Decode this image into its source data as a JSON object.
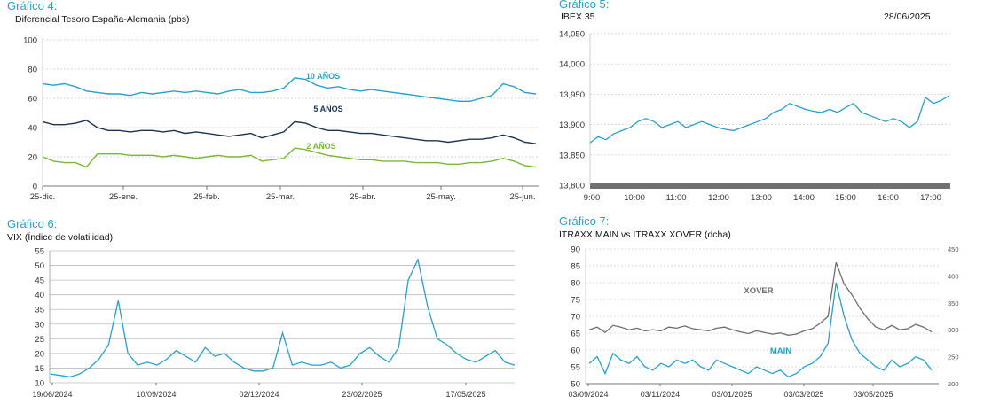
{
  "panels": {
    "g4": {
      "title": "Gráfico 4:",
      "subtitle": "Diferencial Tesoro España-Alemania (pbs)"
    },
    "g5": {
      "title": "Gráfico 5:",
      "subtitle": "IBEX 35",
      "date": "28/06/2025"
    },
    "g6": {
      "title": "Gráfico 6:",
      "subtitle": "VIX (Índice de volatilidad)"
    },
    "g7": {
      "title": "Gráfico 7:",
      "subtitle": "ITRAXX MAIN vs ITRAXX XOVER (dcha)"
    }
  },
  "chart_data": [
    {
      "id": "g4",
      "type": "line",
      "title": "Diferencial Tesoro España-Alemania (pbs)",
      "xlabel": "",
      "ylabel": "",
      "x_ticks": [
        "25-dic.",
        "25-ene.",
        "25-feb.",
        "25-mar.",
        "25-abr.",
        "25-may.",
        "25-jun."
      ],
      "y_ticks": [
        0,
        20,
        40,
        60,
        80,
        100
      ],
      "ylim": [
        0,
        100
      ],
      "grid": true,
      "colors": {
        "10a": "#2aa0c8",
        "5a": "#1c3350",
        "2a": "#7ab63a"
      },
      "series": [
        {
          "name": "10 AÑOS",
          "key": "10a",
          "values": [
            70,
            69,
            70,
            68,
            65,
            64,
            63,
            63,
            62,
            64,
            63,
            64,
            65,
            64,
            65,
            64,
            63,
            65,
            66,
            64,
            64,
            65,
            67,
            74,
            73,
            69,
            67,
            68,
            66,
            65,
            66,
            65,
            64,
            63,
            62,
            61,
            60,
            59,
            58,
            58,
            60,
            62,
            70,
            68,
            64,
            63
          ]
        },
        {
          "name": "5 AÑOS",
          "key": "5a",
          "values": [
            44,
            42,
            42,
            43,
            45,
            40,
            38,
            38,
            37,
            38,
            38,
            37,
            38,
            36,
            37,
            36,
            35,
            34,
            35,
            36,
            33,
            35,
            37,
            44,
            43,
            40,
            38,
            38,
            37,
            36,
            36,
            35,
            34,
            33,
            32,
            31,
            31,
            30,
            31,
            32,
            32,
            33,
            35,
            33,
            30,
            29
          ]
        },
        {
          "name": "2 AÑOS",
          "key": "2a",
          "values": [
            20,
            17,
            16,
            16,
            13,
            22,
            22,
            22,
            21,
            21,
            21,
            20,
            21,
            20,
            19,
            20,
            21,
            20,
            20,
            21,
            17,
            18,
            19,
            26,
            25,
            23,
            21,
            20,
            19,
            18,
            18,
            17,
            17,
            17,
            16,
            16,
            16,
            15,
            15,
            16,
            16,
            17,
            19,
            17,
            14,
            13
          ]
        }
      ],
      "annotations": [
        {
          "text": "10 AÑOS",
          "series": "10a"
        },
        {
          "text": "5 AÑOS",
          "series": "5a"
        },
        {
          "text": "2 AÑOS",
          "series": "2a"
        }
      ]
    },
    {
      "id": "g5",
      "type": "area",
      "title": "IBEX 35",
      "x_ticks": [
        "9:00",
        "10:00",
        "11:00",
        "12:00",
        "13:00",
        "14:00",
        "15:00",
        "16:00",
        "17:00"
      ],
      "y_ticks": [
        "13,800",
        "13,850",
        "13,900",
        "13,950",
        "14,000",
        "14,050"
      ],
      "ylim": [
        13800,
        14050
      ],
      "grid": true,
      "colors": {
        "line": "#2aa0c8",
        "base": "#707070"
      },
      "series": [
        {
          "name": "IBEX 35",
          "values": [
            13870,
            13880,
            13875,
            13885,
            13890,
            13895,
            13905,
            13910,
            13905,
            13895,
            13900,
            13905,
            13895,
            13900,
            13905,
            13900,
            13895,
            13892,
            13890,
            13895,
            13900,
            13905,
            13910,
            13920,
            13925,
            13935,
            13930,
            13925,
            13922,
            13920,
            13925,
            13920,
            13928,
            13935,
            13920,
            13915,
            13910,
            13905,
            13910,
            13905,
            13895,
            13905,
            13945,
            13935,
            13940,
            13948
          ]
        }
      ]
    },
    {
      "id": "g6",
      "type": "line",
      "title": "VIX (Índice de volatilidad)",
      "x_ticks": [
        "19/06/2024",
        "10/09/2024",
        "02/12/2024",
        "23/02/2025",
        "17/05/2025"
      ],
      "y_ticks": [
        10,
        15,
        20,
        25,
        30,
        35,
        40,
        45,
        50,
        55
      ],
      "ylim": [
        10,
        55
      ],
      "grid": true,
      "colors": {
        "line": "#2aa0c8"
      },
      "series": [
        {
          "name": "VIX",
          "values": [
            13,
            12.5,
            12,
            13,
            15,
            18,
            23,
            38,
            20,
            16,
            17,
            16,
            18,
            21,
            19,
            17,
            22,
            19,
            20,
            17,
            15,
            14,
            14,
            15,
            27,
            16,
            17,
            16,
            16,
            17,
            15,
            16,
            20,
            22,
            19,
            17,
            22,
            45,
            52,
            36,
            25,
            23,
            20,
            18,
            17,
            19,
            21,
            17,
            16
          ]
        }
      ]
    },
    {
      "id": "g7",
      "type": "line",
      "title": "ITRAXX MAIN vs ITRAXX XOVER (dcha)",
      "x_ticks": [
        "03/09/2024",
        "03/11/2024",
        "03/01/2025",
        "03/03/2025",
        "03/05/2025"
      ],
      "y_ticks": [
        50,
        55,
        60,
        65,
        70,
        75,
        80,
        85,
        90
      ],
      "y2_ticks": [
        200,
        250,
        300,
        350,
        400,
        450
      ],
      "ylim": [
        50,
        90
      ],
      "y2lim": [
        200,
        450
      ],
      "grid": true,
      "colors": {
        "main": "#2aa0c8",
        "xover": "#6e6e6e"
      },
      "series": [
        {
          "name": "MAIN",
          "axis": "left",
          "values": [
            56,
            58,
            53,
            59,
            57,
            56,
            58,
            55,
            54,
            56,
            55,
            57,
            56,
            57,
            55,
            54,
            57,
            56,
            55,
            54,
            53,
            55,
            54,
            53,
            54,
            52,
            53,
            55,
            56,
            58,
            62,
            80,
            70,
            63,
            59,
            57,
            55,
            54,
            57,
            55,
            56,
            58,
            57,
            54
          ]
        },
        {
          "name": "XOVER",
          "axis": "right",
          "values": [
            300,
            305,
            295,
            308,
            305,
            300,
            303,
            298,
            300,
            298,
            305,
            303,
            307,
            302,
            300,
            298,
            303,
            305,
            300,
            296,
            293,
            298,
            295,
            292,
            294,
            290,
            292,
            298,
            302,
            312,
            325,
            425,
            385,
            365,
            340,
            320,
            305,
            300,
            308,
            300,
            302,
            310,
            305,
            296
          ]
        }
      ],
      "annotations": [
        {
          "text": "XOVER",
          "series": "xover"
        },
        {
          "text": "MAIN",
          "series": "main"
        }
      ]
    }
  ]
}
